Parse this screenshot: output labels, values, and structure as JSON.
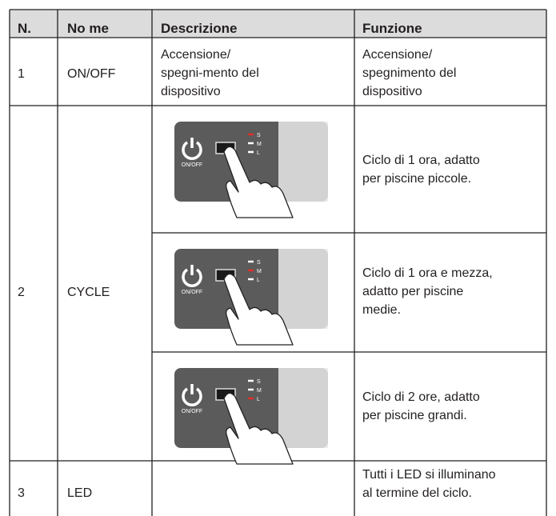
{
  "table": {
    "header": [
      "N.",
      "No me",
      "Descrizione",
      "Funzione"
    ],
    "rows": [
      {
        "n": "1",
        "name": "ON/OFF",
        "description": "Accensione/ spegni-mento del dispositivo",
        "function": "Accensione/ spegnimento del dispositivo"
      },
      {
        "n": "2",
        "name": "CYCLE",
        "options": [
          {
            "function": "Ciclo di 1 ora, adatto per piscine piccole.",
            "lit": 0
          },
          {
            "function": "Ciclo di 1 ora e mezza, adatto per piscine medie.",
            "lit": 1
          },
          {
            "function": "Ciclo di 2 ore, adatto per piscine grandi.",
            "lit": 2
          }
        ]
      },
      {
        "n": "3",
        "name": "LED",
        "description": "",
        "function": "Tutti i LED si illuminano al termine del ciclo."
      }
    ],
    "panel": {
      "power_label": "ON/OFF",
      "levels": [
        "S",
        "M",
        "L"
      ]
    }
  }
}
